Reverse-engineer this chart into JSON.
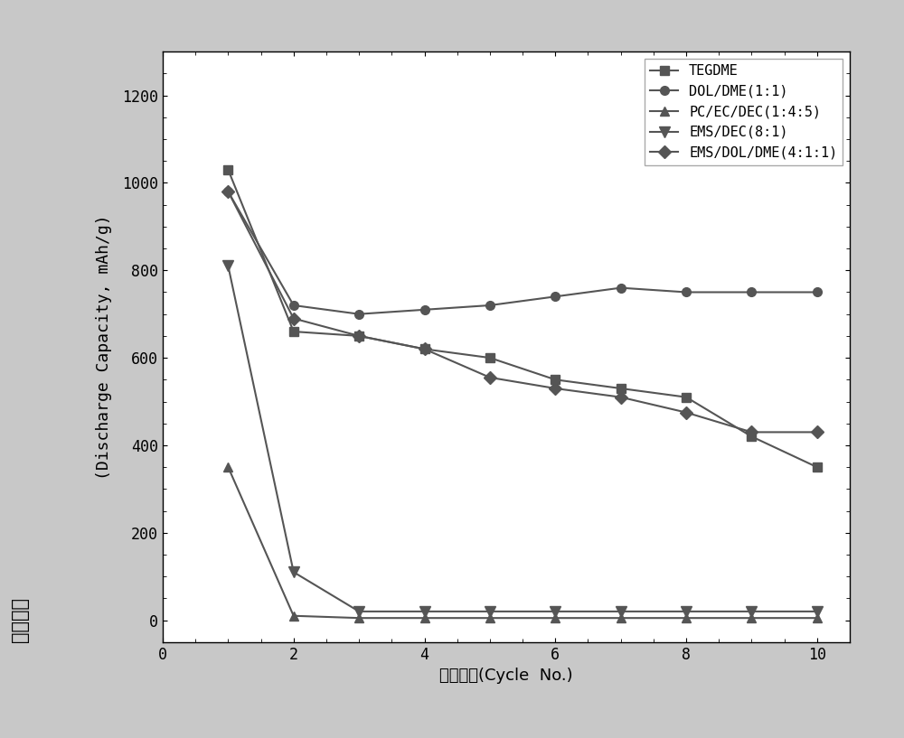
{
  "xlabel_chinese": "循环次数",
  "xlabel_english": "(Cycle  No.)",
  "ylabel_chinese": "放电容量",
  "ylabel_english": "(Discharge Capacity, mAh/g)",
  "xlim": [
    0,
    10.5
  ],
  "ylim": [
    -50,
    1300
  ],
  "xticks": [
    0,
    2,
    4,
    6,
    8,
    10
  ],
  "yticks": [
    0,
    200,
    400,
    600,
    800,
    1000,
    1200
  ],
  "series": [
    {
      "label": "TEGDME",
      "x": [
        1,
        2,
        3,
        4,
        5,
        6,
        7,
        8,
        9,
        10
      ],
      "y": [
        1030,
        660,
        650,
        620,
        600,
        550,
        530,
        510,
        420,
        350
      ],
      "color": "#555555",
      "marker": "s",
      "markersize": 7,
      "linewidth": 1.5
    },
    {
      "label": "DOL/DME(1:1)",
      "x": [
        1,
        2,
        3,
        4,
        5,
        6,
        7,
        8,
        9,
        10
      ],
      "y": [
        980,
        720,
        700,
        710,
        720,
        740,
        760,
        750,
        750,
        750
      ],
      "color": "#555555",
      "marker": "o",
      "markersize": 7,
      "linewidth": 1.5
    },
    {
      "label": "PC/EC/DEC(1:4:5)",
      "x": [
        1,
        2,
        3,
        4,
        5,
        6,
        7,
        8,
        9,
        10
      ],
      "y": [
        350,
        10,
        5,
        5,
        5,
        5,
        5,
        5,
        5,
        5
      ],
      "color": "#555555",
      "marker": "^",
      "markersize": 7,
      "linewidth": 1.5
    },
    {
      "label": "EMS/DEC(8:1)",
      "x": [
        1,
        2,
        3,
        4,
        5,
        6,
        7,
        8,
        9,
        10
      ],
      "y": [
        810,
        110,
        20,
        20,
        20,
        20,
        20,
        20,
        20,
        20
      ],
      "color": "#555555",
      "marker": "v",
      "markersize": 8,
      "linewidth": 1.5
    },
    {
      "label": "EMS/DOL/DME(4:1:1)",
      "x": [
        1,
        2,
        3,
        4,
        5,
        6,
        7,
        8,
        9,
        10
      ],
      "y": [
        980,
        690,
        650,
        620,
        555,
        530,
        510,
        475,
        430,
        430
      ],
      "color": "#555555",
      "marker": "D",
      "markersize": 7,
      "linewidth": 1.5
    }
  ],
  "outer_bg_color": "#c8c8c8",
  "plot_bg_color": "#ffffff",
  "legend_fontsize": 11,
  "tick_fontsize": 12,
  "label_fontsize": 13
}
